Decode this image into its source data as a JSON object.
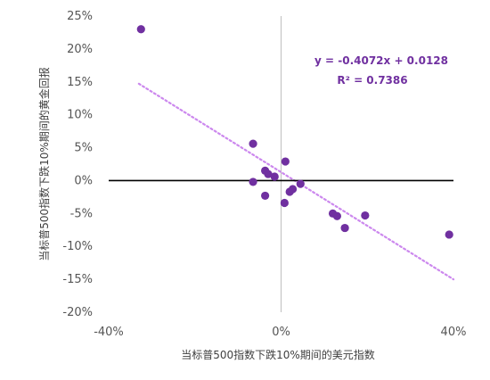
{
  "chart_data": {
    "type": "scatter",
    "xlabel": "当标普500指数下跌10%期间的美元指数",
    "ylabel": "当标普500指数下跌10%期间的黄金回报",
    "xlim": [
      -0.4,
      0.4
    ],
    "ylim": [
      -0.2,
      0.25
    ],
    "x_ticks": [
      "-40%",
      "0%",
      "40%"
    ],
    "y_ticks": [
      "25%",
      "20%",
      "15%",
      "10%",
      "5%",
      "0%",
      "-5%",
      "-10%",
      "-15%",
      "-20%"
    ],
    "grid": false,
    "series": [
      {
        "marker_color": "#7030a0",
        "points": [
          {
            "x": -0.325,
            "y": 0.23
          },
          {
            "x": -0.065,
            "y": 0.056
          },
          {
            "x": -0.065,
            "y": -0.002
          },
          {
            "x": -0.037,
            "y": 0.015
          },
          {
            "x": -0.03,
            "y": 0.01
          },
          {
            "x": -0.015,
            "y": 0.006
          },
          {
            "x": -0.037,
            "y": -0.023
          },
          {
            "x": 0.01,
            "y": 0.029
          },
          {
            "x": 0.008,
            "y": -0.034
          },
          {
            "x": 0.02,
            "y": -0.017
          },
          {
            "x": 0.027,
            "y": -0.013
          },
          {
            "x": 0.045,
            "y": -0.005
          },
          {
            "x": 0.12,
            "y": -0.05
          },
          {
            "x": 0.13,
            "y": -0.054
          },
          {
            "x": 0.148,
            "y": -0.072
          },
          {
            "x": 0.195,
            "y": -0.053
          },
          {
            "x": 0.39,
            "y": -0.082
          }
        ]
      }
    ],
    "trendline": {
      "type": "linear",
      "slope": -0.4072,
      "intercept": 0.0128,
      "color": "#cc88ee",
      "style": "dotted",
      "x_range": [
        -0.33,
        0.4
      ]
    },
    "annotations": {
      "equation": "y = -0.4072x + 0.0128",
      "r_squared": "R² = 0.7386"
    }
  }
}
